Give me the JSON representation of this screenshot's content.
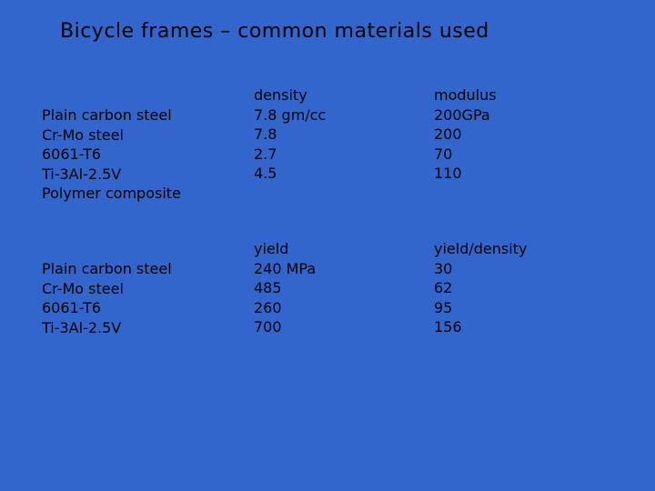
{
  "title": "Bicycle frames – common materials used",
  "table1": {
    "materials": [
      "Plain carbon steel",
      "Cr-Mo steel",
      "6061-T6",
      "Ti-3Al-2.5V",
      "Polymer composite"
    ],
    "density": {
      "header": "density",
      "values": [
        "7.8 gm/cc",
        "7.8",
        "2.7",
        "4.5"
      ]
    },
    "modulus": {
      "header": "modulus",
      "values": [
        "200GPa",
        "200",
        "70",
        "110"
      ]
    }
  },
  "table2": {
    "materials": [
      "Plain carbon steel",
      "Cr-Mo steel",
      "6061-T6",
      "Ti-3Al-2.5V"
    ],
    "yield": {
      "header": "yield",
      "values": [
        "240 MPa",
        "485",
        "260",
        "700"
      ]
    },
    "yield_density": {
      "header": "yield/density",
      "values": [
        "30",
        "62",
        "95",
        "156"
      ]
    }
  }
}
